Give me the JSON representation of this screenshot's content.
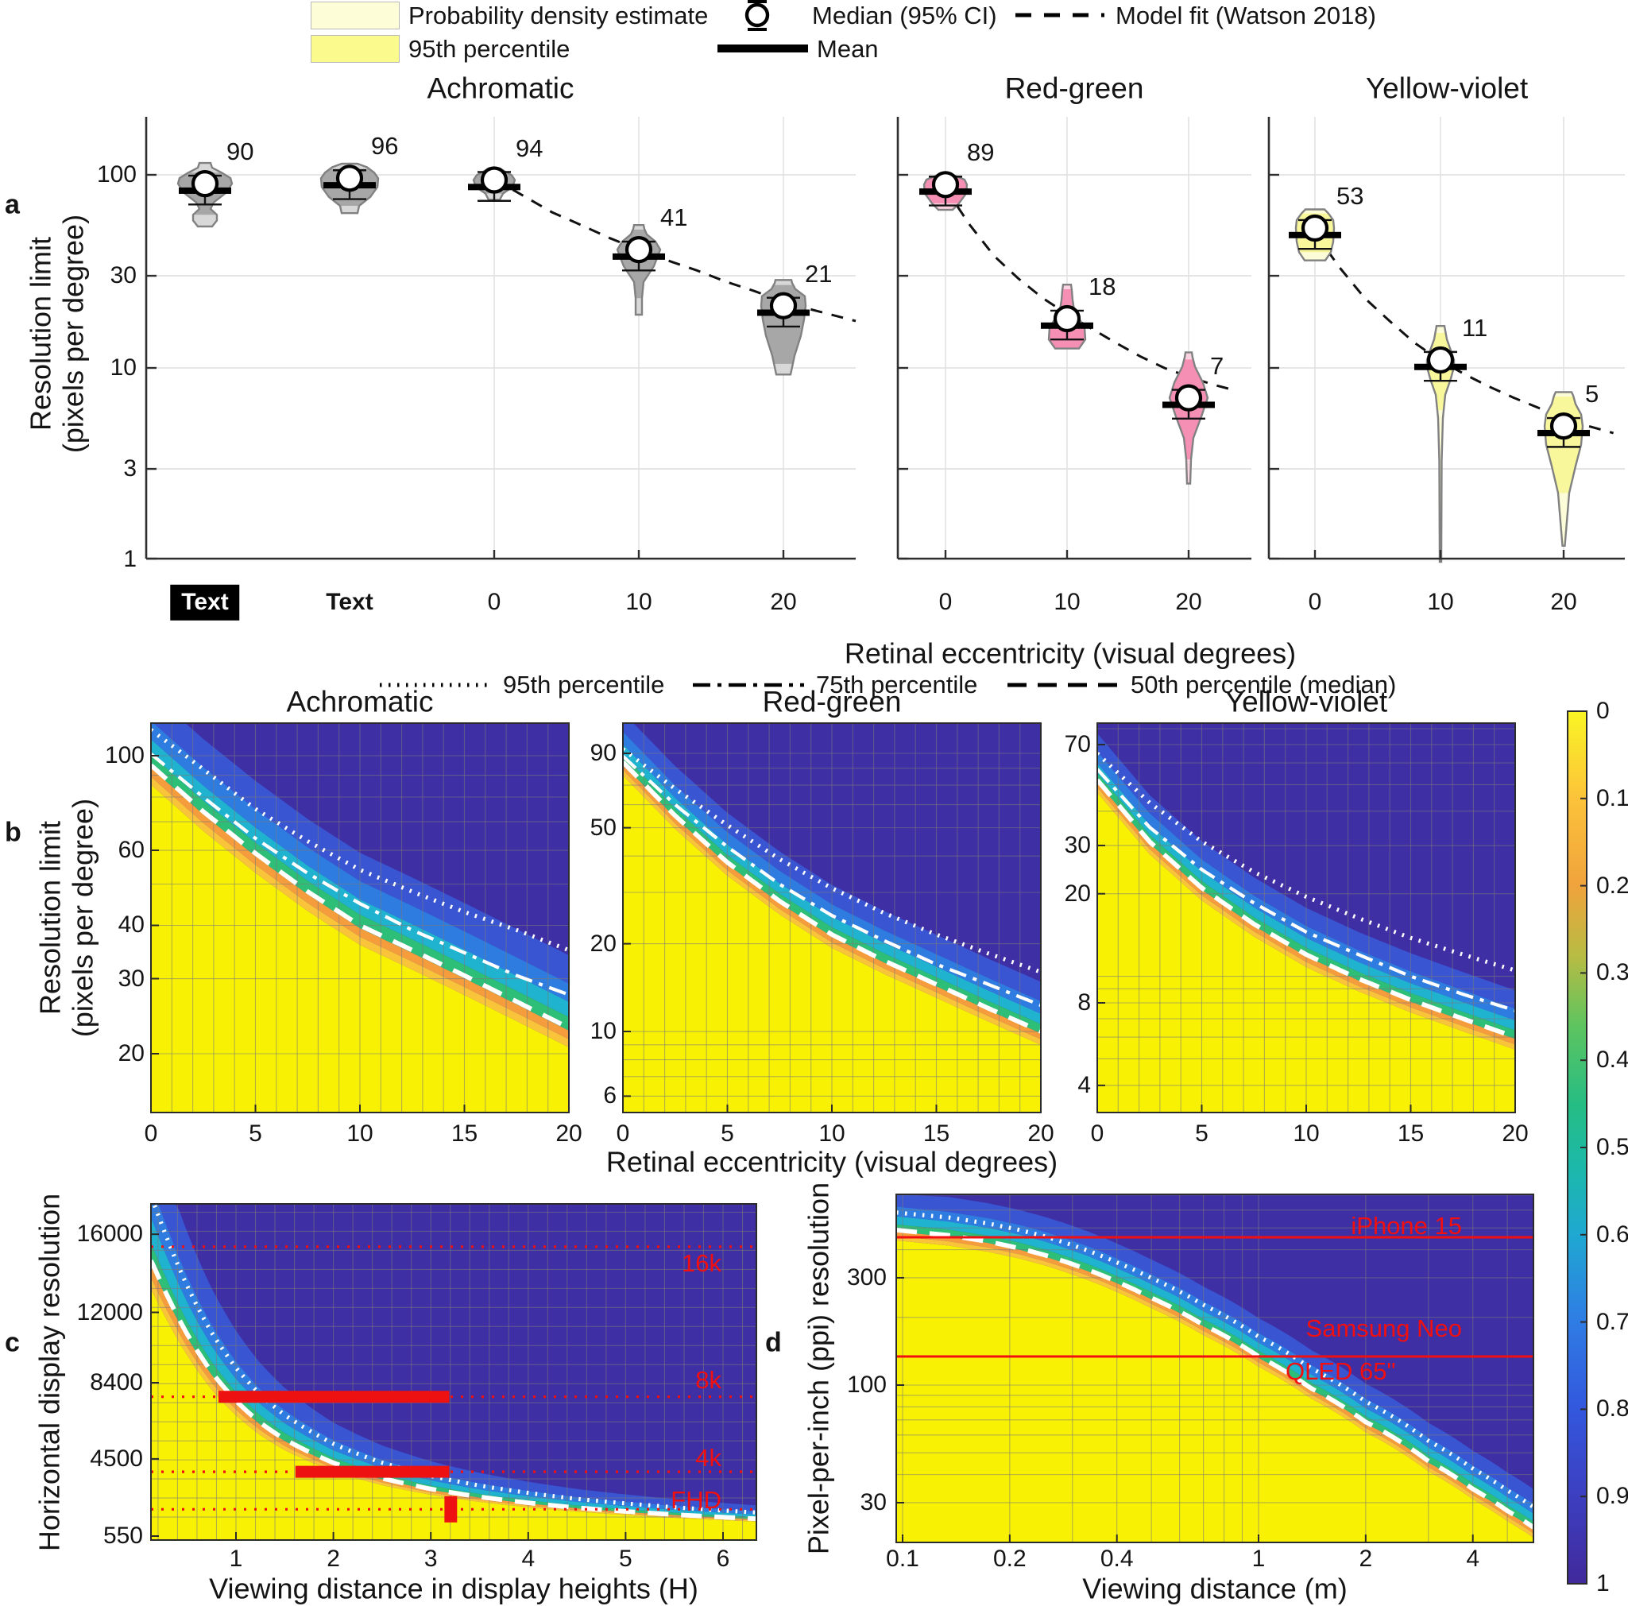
{
  "ui": {
    "legend_a": {
      "pde": "Probability density estimate",
      "p95": "95th percentile",
      "median": "Median (95% CI)",
      "mean": "Mean",
      "model": "Model fit (Watson 2018)"
    },
    "legend_b": {
      "p95": "95th percentile",
      "p75": "75th percentile",
      "p50": "50th percentile (median)"
    },
    "panel_letters": {
      "a": "a",
      "b": "b",
      "c": "c",
      "d": "d"
    },
    "colors": {
      "pde_swatch": "#fdfdd8",
      "p95_swatch": "#fbfa8d",
      "heat_dark": "#3e2fa5",
      "heat_yellow": "#f8f104",
      "band_light_orange": "#f9c33a",
      "band_orange": "#f59d3d",
      "band_green": "#2dbe78",
      "band_cyan": "#1fb3cf",
      "band_blue": "#2e7ce0",
      "band_midblue": "#3a55d2",
      "red_annotation": "#f20f0f"
    }
  },
  "chart_data": {
    "panel_a": {
      "type": "violin",
      "label": "a",
      "ylabel": [
        "Resolution limit",
        "(pixels per degree)"
      ],
      "xlabel": "Retinal eccentricity (visual degrees)",
      "yticks": [
        "1",
        "3",
        "10",
        "30",
        "100"
      ],
      "ylim": [
        1,
        200
      ],
      "subplots": [
        {
          "title": "Achromatic",
          "violin_color": "#a7a7a7",
          "pale_color": "#d8d8d8",
          "x_labels": [
            "Text",
            "Text",
            "0",
            "10",
            "20"
          ],
          "medians": [
            90,
            96,
            94,
            41,
            21
          ],
          "model_fit": {
            "ecc": [
              0,
              2,
              4,
              6,
              8,
              10,
              12,
              14,
              16,
              18,
              20,
              22,
              25
            ],
            "value": [
              95,
              78,
              64,
              55,
              47,
              41,
              36,
              32,
              28,
              25,
              22,
              20,
              17.5
            ]
          }
        },
        {
          "title": "Red-green",
          "violin_color": "#f590b4",
          "pale_color": "#fad2e0",
          "x_labels": [
            "0",
            "10",
            "20"
          ],
          "medians": [
            89,
            18,
            7
          ],
          "model_fit": {
            "ecc": [
              0,
              2,
              4,
              6,
              8,
              10,
              12,
              14,
              16,
              18,
              20,
              22,
              24
            ],
            "value": [
              85,
              55,
              38,
              29,
              23,
              19,
              16,
              13.5,
              11.5,
              10,
              9,
              8.2,
              7.6
            ]
          }
        },
        {
          "title": "Yellow-violet",
          "violin_color": "#f9f79c",
          "pale_color": "#fdfcd9",
          "x_labels": [
            "0",
            "10",
            "20"
          ],
          "medians": [
            53,
            11,
            5
          ],
          "model_fit": {
            "ecc": [
              0,
              2,
              4,
              6,
              8,
              10,
              12,
              14,
              16,
              18,
              20,
              22,
              24
            ],
            "value": [
              50,
              33,
              23,
              17.5,
              13.5,
              11,
              9.3,
              8,
              7,
              6.2,
              5.5,
              5,
              4.6
            ]
          }
        }
      ]
    },
    "panel_b": {
      "type": "heatmap",
      "label": "b",
      "ylabel": [
        "Resolution limit",
        "(pixels per degree)"
      ],
      "xlabel": "Retinal eccentricity (visual degrees)",
      "xticks": [
        "0",
        "5",
        "10",
        "15",
        "20"
      ],
      "ecc": [
        0,
        2.5,
        5,
        7.5,
        10,
        12.5,
        15,
        17.5,
        20
      ],
      "subplots": [
        {
          "title": "Achromatic",
          "yticks": [
            "20",
            "30",
            "40",
            "60",
            "100"
          ],
          "p50": [
            95,
            74,
            59,
            48,
            40,
            35,
            30.5,
            26.5,
            23
          ],
          "p75": [
            101,
            80,
            64,
            53,
            45,
            39,
            34.5,
            30.5,
            27.5
          ],
          "p95": [
            115,
            93,
            75,
            63,
            54,
            48,
            43,
            39,
            35
          ]
        },
        {
          "title": "Red-green",
          "yticks": [
            "6",
            "10",
            "20",
            "50",
            "90"
          ],
          "p50": [
            84,
            55,
            38,
            28,
            21.5,
            17.5,
            14.5,
            12,
            10
          ],
          "p75": [
            88,
            60,
            43,
            32,
            25,
            20.5,
            17,
            14.5,
            12.3
          ],
          "p95": [
            93,
            68,
            51,
            39,
            31,
            25.5,
            21.5,
            18.5,
            16
          ]
        },
        {
          "title": "Yellow-violet",
          "yticks": [
            "4",
            "8",
            "20",
            "30",
            "70"
          ],
          "p50": [
            52,
            31,
            21,
            15.5,
            12,
            9.8,
            8.2,
            7,
            6
          ],
          "p75": [
            57,
            35,
            24.5,
            18.5,
            14.5,
            12,
            10,
            8.6,
            7.5
          ],
          "p95": [
            65,
            43,
            31,
            24,
            19.5,
            16.3,
            13.8,
            12,
            10.5
          ]
        }
      ],
      "colorbar": {
        "ticks": [
          "0",
          "0.1",
          "0.2",
          "0.3",
          "0.4",
          "0.5",
          "0.6",
          "0.7",
          "0.8",
          "0.9",
          "1"
        ]
      }
    },
    "panel_c": {
      "type": "heatmap",
      "label": "c",
      "ylabel": "Horizontal display resolution",
      "xlabel": "Viewing distance in display heights (H)",
      "yticks": [
        "550",
        "4500",
        "8400",
        "12000",
        "16000"
      ],
      "xticks": [
        "1",
        "2",
        "3",
        "4",
        "5",
        "6"
      ],
      "t": [
        0.13,
        0.3,
        0.5,
        0.75,
        1,
        1.25,
        1.5,
        2,
        2.5,
        3,
        3.5,
        4,
        4.5,
        5,
        5.5,
        6,
        6.34
      ],
      "p50": [
        14657,
        12800,
        10881,
        8943,
        7472,
        6351,
        5499,
        4297,
        3507,
        2960,
        2557,
        2251,
        2001,
        1812,
        1650,
        1516,
        1435
      ],
      "p95": [
        17974,
        15697,
        13343,
        10967,
        9163,
        7788,
        6743,
        5269,
        4301,
        3630,
        3135,
        2761,
        2453,
        2222,
        2024,
        1859,
        1760
      ],
      "ref_lines": [
        {
          "label": "16k",
          "value": 15360
        },
        {
          "label": "8k",
          "value": 7680
        },
        {
          "label": "4k",
          "value": 3840
        },
        {
          "label": "FHD",
          "value": 1920
        }
      ],
      "bars": [
        {
          "value": 7680,
          "from": 0.82,
          "to": 3.19
        },
        {
          "value": 3840,
          "from": 1.61,
          "to": 3.19
        },
        {
          "value": 1920,
          "from": 3.14,
          "to": 3.27
        }
      ]
    },
    "panel_d": {
      "type": "heatmap",
      "label": "d",
      "ylabel": "Pixel-per-inch (ppi) resolution",
      "xlabel": "Viewing distance (m)",
      "yticks": [
        "30",
        "100",
        "300"
      ],
      "xticks": [
        "0.1",
        "0.2",
        "0.4",
        "1",
        "2",
        "4"
      ],
      "d": [
        0.096,
        0.12,
        0.15,
        0.2,
        0.25,
        0.3,
        0.4,
        0.5,
        0.7,
        1,
        1.4,
        2,
        3,
        4,
        5,
        5.92
      ],
      "p50": [
        489,
        474,
        453,
        416,
        379,
        345,
        288,
        244,
        185,
        134,
        97,
        68.5,
        45.9,
        34.5,
        27.6,
        23.3
      ],
      "p95": [
        585,
        568,
        544,
        501,
        459,
        419,
        351,
        299,
        227,
        164,
        119,
        84.4,
        56.5,
        42.5,
        34,
        28.7
      ],
      "ref_lines": [
        {
          "label": "iPhone 15",
          "value": 454
        },
        {
          "label": "Samsung Neo",
          "label2": "QLED 65\"",
          "value": 134
        }
      ]
    }
  }
}
